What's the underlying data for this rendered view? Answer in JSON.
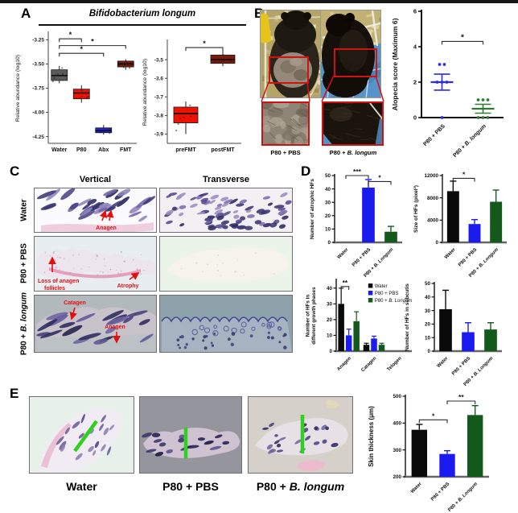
{
  "figure": {
    "top_bar_color": "#161616",
    "bg": "#ffffff"
  },
  "panels": {
    "a": {
      "label": "A",
      "title": "Bifidobacterium longum"
    },
    "b": {
      "label": "B",
      "captions": [
        "P80 + PBS",
        "P80 + B. longum"
      ]
    },
    "c": {
      "label": "C",
      "col_headers": [
        "Vertical",
        "Transverse"
      ],
      "row_labels": [
        "Water",
        "P80 + PBS",
        "P80 + B. longum"
      ],
      "annotations": {
        "water_vertical": "Anagen",
        "pbs_line1": "Loss of anagen",
        "pbs_line2": "follicles",
        "pbs_atrophy": "Atrophy",
        "bl_catagen": "Catagen",
        "bl_anagen": "Anagen"
      }
    },
    "d": {
      "label": "D"
    },
    "e": {
      "label": "E",
      "captions": [
        "Water",
        "P80 + PBS",
        "P80 + B. longum"
      ]
    }
  },
  "chart_data": [
    {
      "id": "abundance_groups",
      "type": "box",
      "ylabel": "Relative abundance (log10)",
      "ylim": [
        -4.32,
        -3.18
      ],
      "yticks": [
        -3.25,
        -3.5,
        -3.75,
        -4.0,
        -4.25
      ],
      "ytick_labels": [
        "-3.25",
        "-3.50",
        "-3.75",
        "-4.00",
        "-4.25"
      ],
      "categories": [
        "Water",
        "P80",
        "Abx",
        "FMT"
      ],
      "colors": [
        "#5a5a5a",
        "#ee1205",
        "#2020dd",
        "#7c1a0c"
      ],
      "boxes": [
        {
          "lo": -3.7,
          "q1": -3.67,
          "med": -3.62,
          "q3": -3.56,
          "hi": -3.52
        },
        {
          "lo": -3.9,
          "q1": -3.86,
          "med": -3.8,
          "q3": -3.76,
          "hi": -3.72
        },
        {
          "lo": -4.23,
          "q1": -4.21,
          "med": -4.19,
          "q3": -4.16,
          "hi": -4.13
        },
        {
          "lo": -3.56,
          "q1": -3.53,
          "med": -3.5,
          "q3": -3.47,
          "hi": -3.45
        }
      ],
      "sig": [
        {
          "a": 0,
          "b": 1,
          "y": -3.24,
          "label": "*"
        },
        {
          "a": 0,
          "b": 3,
          "y": -3.31,
          "label": "*"
        },
        {
          "a": 0,
          "b": 2,
          "y": -3.39,
          "label": "*"
        }
      ]
    },
    {
      "id": "abundance_fmt",
      "type": "box",
      "ylabel": "Relative abundance (log10)",
      "ylim": [
        -3.95,
        -3.4
      ],
      "yticks": [
        -3.5,
        -3.6,
        -3.7,
        -3.8,
        -3.9
      ],
      "ytick_labels": [
        "-3.5",
        "-3.6",
        "-3.7",
        "-3.8",
        "-3.9"
      ],
      "categories": [
        "preFMT",
        "postFMT"
      ],
      "colors": [
        "#ee1205",
        "#7c1a0c"
      ],
      "boxes": [
        {
          "lo": -3.9,
          "q1": -3.84,
          "med": -3.79,
          "q3": -3.755,
          "hi": -3.725
        },
        {
          "lo": -3.535,
          "q1": -3.52,
          "med": -3.5,
          "q3": -3.475,
          "hi": -3.45
        }
      ],
      "sig": [
        {
          "a": 0,
          "b": 1,
          "y": -3.435,
          "label": "*"
        }
      ]
    },
    {
      "id": "alopecia",
      "type": "scatter",
      "ylabel": "Alopecia score (Maximum 6)",
      "ylim": [
        0,
        6
      ],
      "yticks": [
        0,
        2,
        4,
        6
      ],
      "groups": [
        {
          "label": "P80 + PBS",
          "color": "#2a2af0",
          "points": [
            3,
            3,
            2,
            2,
            2,
            0
          ],
          "mean": 2.0,
          "err": 0.45
        },
        {
          "label": "P80 + B. longum",
          "color": "#317a33",
          "points": [
            1,
            1,
            1,
            0,
            0,
            0
          ],
          "mean": 0.5,
          "err": 0.25
        }
      ],
      "sig": [
        {
          "a": 0,
          "b": 1,
          "y": 4.3,
          "label": "*"
        }
      ]
    },
    {
      "id": "atrophic_hfs",
      "type": "bar",
      "ylabel": "Number of atrophic HFs",
      "ylim": [
        0,
        50
      ],
      "yticks": [
        0,
        10,
        20,
        30,
        40,
        50
      ],
      "categories": [
        "Water",
        "P80 + PBS",
        "P80 + B. Longum"
      ],
      "colors": [
        "#0a0a0a",
        "#1b1bf0",
        "#14591c"
      ],
      "values": [
        0,
        41,
        8
      ],
      "errors": [
        0,
        6,
        4
      ],
      "sig": [
        {
          "a": 0,
          "b": 1,
          "y": 50,
          "label": "***"
        },
        {
          "a": 1,
          "b": 2,
          "y": 45.5,
          "label": "*"
        }
      ]
    },
    {
      "id": "size_hfs",
      "type": "bar",
      "ylabel": "Size of HFs (pixel²)",
      "ylim": [
        0,
        12000
      ],
      "yticks": [
        0,
        4000,
        8000,
        12000
      ],
      "categories": [
        "Water",
        "P80 + PBS",
        "P80 + B. Longum"
      ],
      "colors": [
        "#0a0a0a",
        "#1b1bf0",
        "#14591c"
      ],
      "values": [
        9200,
        3300,
        7300
      ],
      "errors": [
        1800,
        800,
        2100
      ],
      "sig": [
        {
          "a": 0,
          "b": 1,
          "y": 11500,
          "label": "*"
        }
      ]
    },
    {
      "id": "growth_phases",
      "type": "grouped_bar",
      "ylabel": "Number of HFs in\ndifferent growth phases",
      "ylim": [
        0,
        45
      ],
      "yticks": [
        0,
        10,
        20,
        30,
        40
      ],
      "categories": [
        "Anagen",
        "Catagen",
        "Telogen"
      ],
      "series": [
        {
          "name": "Water",
          "color": "#0a0a0a",
          "values": [
            30,
            4,
            0
          ],
          "errors": [
            10,
            1,
            0
          ]
        },
        {
          "name": "P80 + PBS",
          "color": "#1b1bf0",
          "values": [
            10,
            8,
            0
          ],
          "errors": [
            4,
            1.5,
            0
          ]
        },
        {
          "name": "P80 + B. Longum",
          "color": "#14591c",
          "values": [
            19,
            4,
            0
          ],
          "errors": [
            6,
            1,
            0
          ]
        }
      ],
      "sig": [
        {
          "group": 0,
          "s1": 0,
          "s2": 1,
          "y": 41,
          "label": "**"
        }
      ]
    },
    {
      "id": "subcutis_hfs",
      "type": "bar",
      "ylabel": "Number of HFs in subcutis",
      "ylim": [
        0,
        50
      ],
      "yticks": [
        0,
        10,
        20,
        30,
        40,
        50
      ],
      "categories": [
        "Water",
        "P80 + PBS",
        "P80 + B. Longum"
      ],
      "colors": [
        "#0a0a0a",
        "#1b1bf0",
        "#14591c"
      ],
      "values": [
        31,
        14,
        16
      ],
      "errors": [
        14,
        7,
        5
      ],
      "sig": []
    },
    {
      "id": "skin_thickness",
      "type": "bar",
      "ylabel": "Skin thickness (μm)",
      "ylim": [
        200,
        500
      ],
      "yticks": [
        200,
        300,
        400,
        500
      ],
      "categories": [
        "Water",
        "P80 + PBS",
        "P80 + B. Longum"
      ],
      "colors": [
        "#0a0a0a",
        "#1b1bf0",
        "#14591c"
      ],
      "values": [
        375,
        285,
        430
      ],
      "errors": [
        20,
        12,
        35
      ],
      "sig": [
        {
          "a": 0,
          "b": 1,
          "y": 412,
          "label": "*"
        },
        {
          "a": 1,
          "b": 2,
          "y": 482,
          "label": "**"
        }
      ]
    }
  ]
}
